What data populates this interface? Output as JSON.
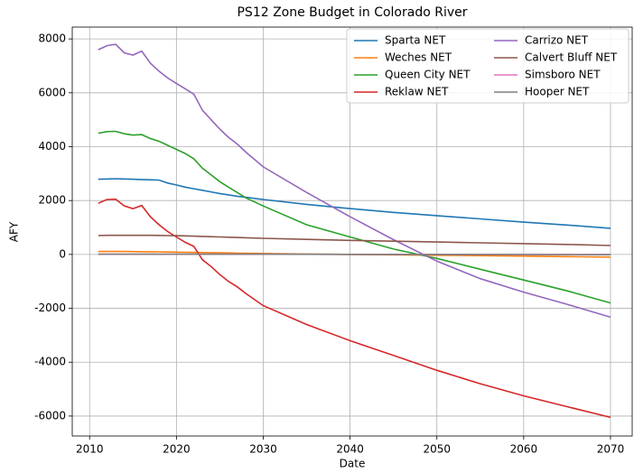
{
  "chart_data": {
    "type": "line",
    "title": "PS12 Zone Budget in Colorado River",
    "xlabel": "Date",
    "ylabel": "AFY",
    "x": [
      2011,
      2012,
      2013,
      2014,
      2015,
      2016,
      2017,
      2018,
      2019,
      2020,
      2021,
      2022,
      2023,
      2024,
      2025,
      2026,
      2027,
      2028,
      2030,
      2035,
      2040,
      2045,
      2050,
      2055,
      2060,
      2065,
      2070
    ],
    "series": [
      {
        "name": "Sparta NET",
        "color": "#1f77b4",
        "values": [
          2790,
          2800,
          2810,
          2800,
          2790,
          2780,
          2770,
          2760,
          2650,
          2580,
          2500,
          2440,
          2380,
          2320,
          2260,
          2210,
          2160,
          2120,
          2040,
          1860,
          1700,
          1560,
          1440,
          1320,
          1200,
          1090,
          970
        ]
      },
      {
        "name": "Weches NET",
        "color": "#ff7f0e",
        "values": [
          110,
          110,
          110,
          110,
          105,
          100,
          100,
          95,
          90,
          85,
          80,
          75,
          70,
          65,
          60,
          55,
          50,
          45,
          35,
          15,
          0,
          -15,
          -30,
          -45,
          -60,
          -80,
          -100
        ]
      },
      {
        "name": "Queen City NET",
        "color": "#2ca02c",
        "values": [
          4500,
          4560,
          4570,
          4480,
          4430,
          4450,
          4300,
          4200,
          4050,
          3900,
          3750,
          3550,
          3200,
          2950,
          2700,
          2500,
          2300,
          2100,
          1800,
          1100,
          650,
          200,
          -150,
          -550,
          -950,
          -1350,
          -1800
        ]
      },
      {
        "name": "Reklaw NET",
        "color": "#d62728",
        "values": [
          1900,
          2040,
          2050,
          1800,
          1700,
          1820,
          1400,
          1100,
          850,
          650,
          450,
          300,
          -200,
          -450,
          -750,
          -1000,
          -1200,
          -1450,
          -1900,
          -2600,
          -3200,
          -3750,
          -4300,
          -4800,
          -5250,
          -5650,
          -6050
        ]
      },
      {
        "name": "Carrizo NET",
        "color": "#9467bd",
        "values": [
          7600,
          7750,
          7800,
          7480,
          7400,
          7550,
          7100,
          6800,
          6550,
          6350,
          6150,
          5950,
          5350,
          5000,
          4650,
          4350,
          4100,
          3800,
          3250,
          2300,
          1400,
          550,
          -250,
          -900,
          -1400,
          -1850,
          -2330
        ]
      },
      {
        "name": "Calvert Bluff NET",
        "color": "#8c564b",
        "values": [
          700,
          710,
          710,
          710,
          710,
          710,
          710,
          705,
          700,
          695,
          690,
          680,
          670,
          660,
          650,
          640,
          630,
          620,
          600,
          560,
          520,
          490,
          460,
          430,
          400,
          370,
          330
        ]
      },
      {
        "name": "Simsboro NET",
        "color": "#e377c2",
        "values": [
          5,
          5,
          5,
          5,
          5,
          5,
          5,
          5,
          5,
          5,
          5,
          5,
          5,
          5,
          5,
          5,
          5,
          5,
          5,
          4,
          3,
          2,
          2,
          1,
          1,
          0,
          0
        ]
      },
      {
        "name": "Hooper NET",
        "color": "#7f7f7f",
        "values": [
          10,
          10,
          10,
          10,
          10,
          10,
          10,
          10,
          10,
          10,
          10,
          10,
          10,
          10,
          10,
          10,
          10,
          10,
          8,
          5,
          2,
          0,
          -2,
          -4,
          -6,
          -8,
          -10
        ]
      }
    ],
    "xlim": [
      2008,
      2072.5
    ],
    "ylim": [
      -6740,
      8440
    ],
    "xticks": [
      2010,
      2020,
      2030,
      2040,
      2050,
      2060,
      2070
    ],
    "yticks": [
      -6000,
      -4000,
      -2000,
      0,
      2000,
      4000,
      6000,
      8000
    ],
    "grid": true,
    "legend": "upper right",
    "legend_columns": 2
  }
}
